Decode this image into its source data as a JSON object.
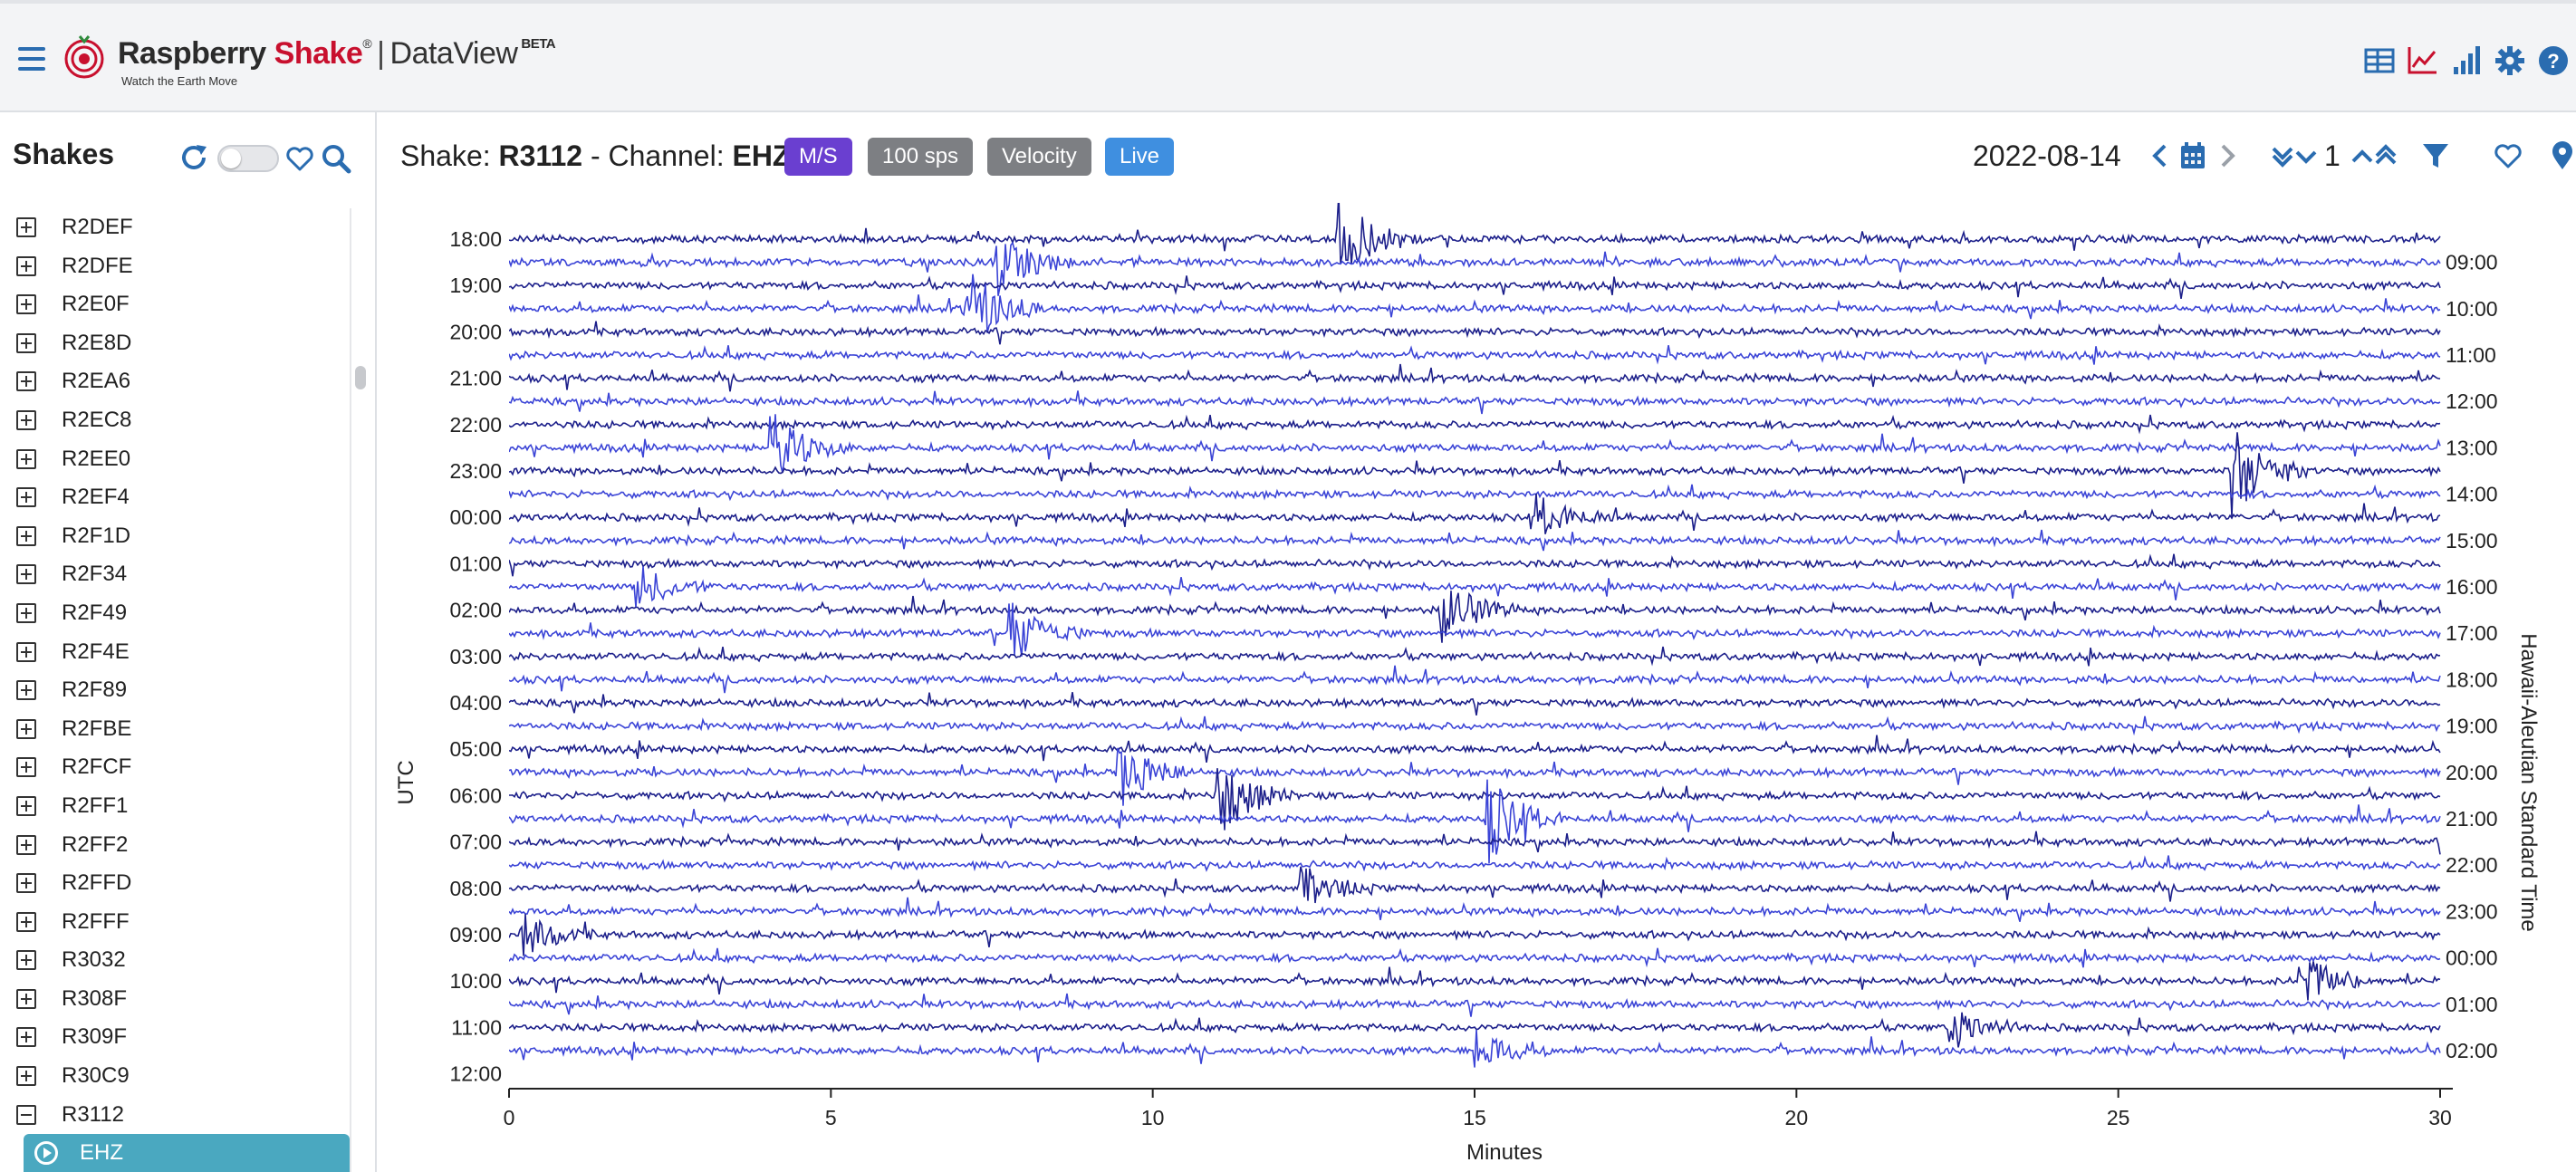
{
  "header": {
    "brand_name": "Raspberry",
    "brand_accent": "Shake",
    "brand_reg": "®",
    "separator": "|",
    "app_name": "DataView",
    "beta": "BETA",
    "tagline": "Watch the Earth Move",
    "icons": [
      "hamburger-icon",
      "table-icon",
      "line-chart-icon",
      "bar-signal-icon",
      "gear-icon",
      "help-icon"
    ]
  },
  "sidebar": {
    "title": "Shakes",
    "items": [
      "R2DEF",
      "R2DFE",
      "R2E0F",
      "R2E8D",
      "R2EA6",
      "R2EC8",
      "R2EE0",
      "R2EF4",
      "R2F1D",
      "R2F34",
      "R2F49",
      "R2F4E",
      "R2F89",
      "R2FBE",
      "R2FCF",
      "R2FF1",
      "R2FF2",
      "R2FFD",
      "R2FFF",
      "R3032",
      "R308F",
      "R309F",
      "R30C9",
      "R3112"
    ],
    "expanded_item": "R3112",
    "selected_channel": "EHZ"
  },
  "main": {
    "shake_prefix": "Shake: ",
    "shake_id": "R3112",
    "channel_prefix": " - Channel: ",
    "channel": "EHZ",
    "badges": {
      "units": "M/S",
      "sps": "100 sps",
      "type": "Velocity",
      "live": "Live"
    },
    "date": "2022-08-14",
    "count": "1"
  },
  "colors": {
    "accent": "#2a6cb0",
    "brand_red": "#c8102e",
    "badge_units": "#6a3fd0",
    "badge_gray": "#7d7f83",
    "badge_live": "#3f8fe0",
    "trace_dark": "#1c1f8a",
    "trace_light": "#3b44d6"
  },
  "chart_data": {
    "type": "line",
    "title": "",
    "xlabel": "Minutes",
    "ylabel_left": "UTC",
    "ylabel_right": "Hawaii-Aleutian Standard Time",
    "xlim": [
      0,
      30
    ],
    "x_ticks": [
      "0",
      "5",
      "10",
      "15",
      "20",
      "25",
      "30"
    ],
    "utc_labels": [
      "18:00",
      "19:00",
      "20:00",
      "21:00",
      "22:00",
      "23:00",
      "00:00",
      "01:00",
      "02:00",
      "03:00",
      "04:00",
      "05:00",
      "06:00",
      "07:00",
      "08:00",
      "09:00",
      "10:00",
      "11:00",
      "12:00"
    ],
    "local_labels": [
      "09:00",
      "10:00",
      "11:00",
      "12:00",
      "13:00",
      "14:00",
      "15:00",
      "16:00",
      "17:00",
      "18:00",
      "19:00",
      "20:00",
      "21:00",
      "22:00",
      "23:00",
      "00:00",
      "01:00",
      "02:00"
    ],
    "traces_count": 37,
    "trace_minutes_each": 30,
    "events": [
      {
        "row": 1,
        "minute": 7.6,
        "amp": 3
      },
      {
        "row": 0,
        "minute": 12.9,
        "amp": 4
      },
      {
        "row": 3,
        "minute": 7.1,
        "amp": 4
      },
      {
        "row": 9,
        "minute": 4.1,
        "amp": 3
      },
      {
        "row": 12,
        "minute": 16.0,
        "amp": 2
      },
      {
        "row": 10,
        "minute": 26.8,
        "amp": 4
      },
      {
        "row": 15,
        "minute": 2.0,
        "amp": 2
      },
      {
        "row": 16,
        "minute": 14.5,
        "amp": 3
      },
      {
        "row": 17,
        "minute": 7.8,
        "amp": 3
      },
      {
        "row": 23,
        "minute": 9.5,
        "amp": 3
      },
      {
        "row": 24,
        "minute": 11.0,
        "amp": 4
      },
      {
        "row": 25,
        "minute": 15.2,
        "amp": 4
      },
      {
        "row": 28,
        "minute": 12.3,
        "amp": 2
      },
      {
        "row": 30,
        "minute": 0.2,
        "amp": 2
      },
      {
        "row": 32,
        "minute": 27.8,
        "amp": 3
      },
      {
        "row": 34,
        "minute": 22.4,
        "amp": 2
      },
      {
        "row": 35,
        "minute": 15.0,
        "amp": 2
      }
    ]
  }
}
